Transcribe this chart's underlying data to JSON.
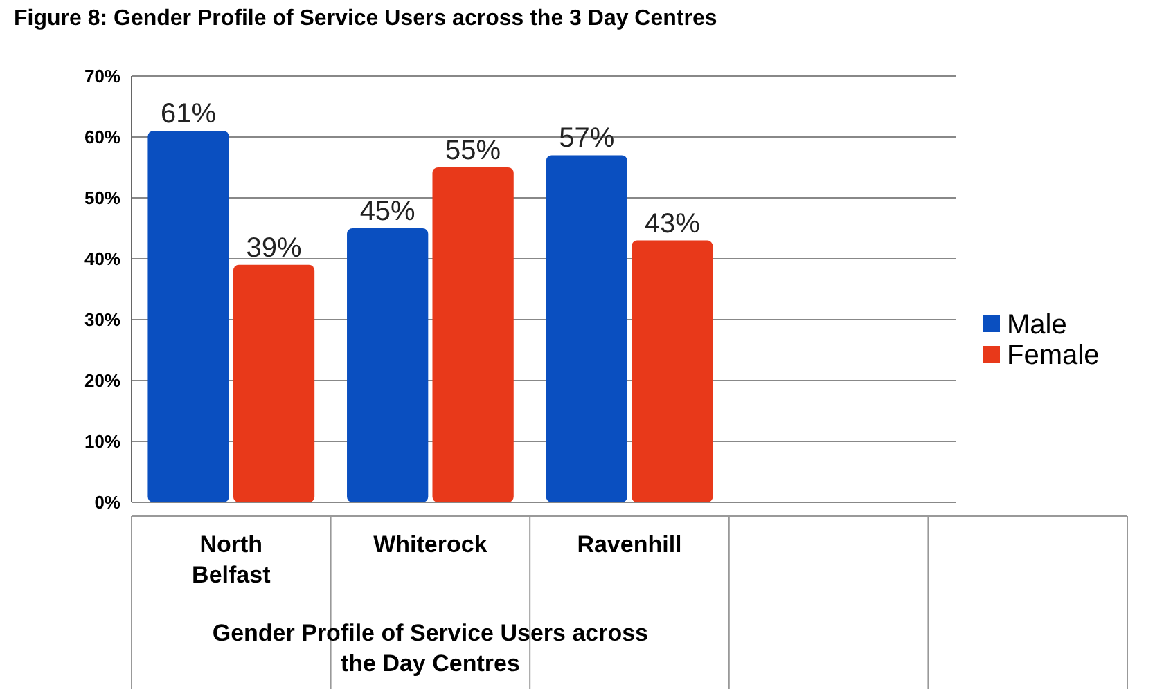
{
  "chart_data": {
    "type": "bar",
    "title": "Figure 8: Gender Profile of Service Users across the 3 Day Centres",
    "xlabel": "Gender Profile of Service Users across the Day Centres",
    "categories": [
      "North Belfast",
      "Whiterock",
      "Ravenhill",
      null,
      null
    ],
    "series": [
      {
        "name": "Male",
        "color": "#0a4fc0",
        "values": [
          61,
          45,
          57,
          null,
          null
        ],
        "value_labels": [
          "61%",
          "45%",
          "57%",
          null,
          null
        ]
      },
      {
        "name": "Female",
        "color": "#e8391a",
        "values": [
          39,
          55,
          43,
          null,
          null
        ],
        "value_labels": [
          "39%",
          "55%",
          "43%",
          null,
          null
        ]
      }
    ],
    "ylim": [
      0,
      70
    ],
    "yticks": [
      {
        "value": 0,
        "label": "0%"
      },
      {
        "value": 10,
        "label": "10%"
      },
      {
        "value": 20,
        "label": "20%"
      },
      {
        "value": 30,
        "label": "30%"
      },
      {
        "value": 40,
        "label": "40%"
      },
      {
        "value": 50,
        "label": "50%"
      },
      {
        "value": 60,
        "label": "60%"
      },
      {
        "value": 70,
        "label": "70%"
      }
    ],
    "grid": "y",
    "legend": "right"
  }
}
